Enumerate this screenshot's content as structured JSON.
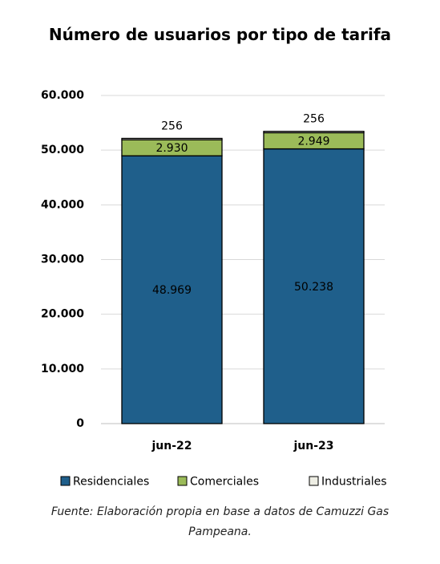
{
  "chart_data": {
    "type": "bar",
    "stacked": true,
    "title": "Número de usuarios por tipo de tarifa",
    "categories": [
      "jun-22",
      "jun-23"
    ],
    "series": [
      {
        "name": "Residenciales",
        "color": "#1f5f8b",
        "values": [
          48969,
          50238
        ],
        "value_labels": [
          "48.969",
          "50.238"
        ]
      },
      {
        "name": "Comerciales",
        "color": "#9bbb59",
        "values": [
          2930,
          2949
        ],
        "value_labels": [
          "2.930",
          "2.949"
        ]
      },
      {
        "name": "Industriales",
        "color": "#eeeee4",
        "values": [
          256,
          256
        ]
      }
    ],
    "ylim": [
      0,
      60000
    ],
    "yticks": [
      0,
      {
        "value": 10000,
        "label": "10.000"
      },
      {
        "value": 20000,
        "label": "20.000"
      },
      {
        "value": 30000,
        "label": "30.000"
      },
      {
        "value": 40000,
        "label": "40.000"
      },
      {
        "value": 50000,
        "label": "50.000"
      },
      {
        "value": 60000,
        "label": "60.000"
      }
    ],
    "grid": true,
    "legend": "bottom",
    "source": "Fuente: Elaboración propia en base a datos de Camuzzi Gas Pampeana."
  }
}
